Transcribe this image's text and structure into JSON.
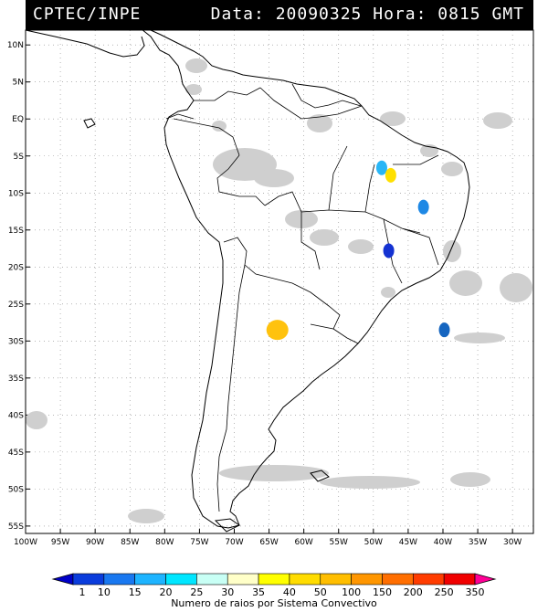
{
  "header": {
    "source": "CPTEC/INPE",
    "data_label": "Data:",
    "date": "20090325",
    "hora_label": "Hora:",
    "time": "0815",
    "tz": "GMT"
  },
  "map": {
    "lat_ticks": [
      "10N",
      "5N",
      "EQ",
      "5S",
      "10S",
      "15S",
      "20S",
      "25S",
      "30S",
      "35S",
      "40S",
      "45S",
      "50S",
      "55S"
    ],
    "lon_ticks": [
      "100W",
      "95W",
      "90W",
      "85W",
      "80W",
      "75W",
      "70W",
      "65W",
      "60W",
      "55W",
      "50W",
      "45W",
      "40W",
      "35W",
      "30W"
    ],
    "lon_range": [
      -100,
      -27
    ],
    "lat_range": [
      -56,
      12
    ],
    "grid": true,
    "convective_systems": [
      {
        "lon": -48.8,
        "lat": -6.6,
        "color": "#29b6f6",
        "class": "20"
      },
      {
        "lon": -47.5,
        "lat": -7.6,
        "color": "#ffe000",
        "class": "40"
      },
      {
        "lon": -42.8,
        "lat": -11.9,
        "color": "#1e88e5",
        "class": "15"
      },
      {
        "lon": -47.8,
        "lat": -17.8,
        "color": "#1432d2",
        "class": "10"
      },
      {
        "lon": -63.8,
        "lat": -28.5,
        "color": "#ffc20e",
        "class": "50"
      },
      {
        "lon": -39.8,
        "lat": -28.5,
        "color": "#1565c0",
        "class": "15"
      }
    ]
  },
  "colorbar": {
    "labels": [
      "1",
      "10",
      "15",
      "20",
      "25",
      "30",
      "35",
      "40",
      "50",
      "100",
      "150",
      "200",
      "250",
      "350"
    ],
    "colors": [
      "#0000c8",
      "#0a3cdc",
      "#1978f0",
      "#1eb4ff",
      "#00e6ff",
      "#c8fff5",
      "#ffffc8",
      "#ffff00",
      "#ffdc00",
      "#ffbe00",
      "#ff9600",
      "#ff6e00",
      "#ff3c00",
      "#f00000",
      "#ff0096"
    ],
    "title": "Numero de raios por Sistema Convectivo"
  }
}
